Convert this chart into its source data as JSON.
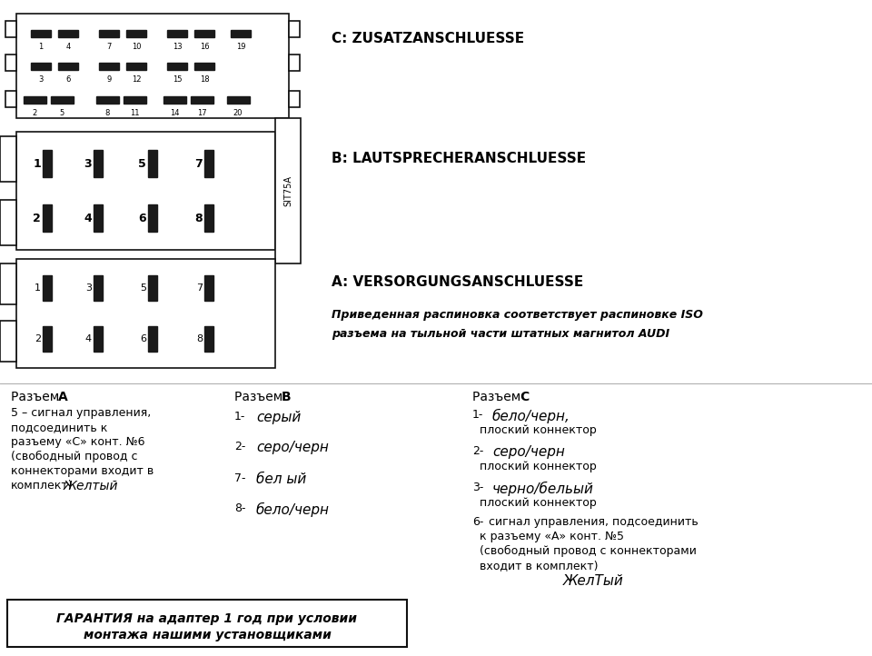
{
  "connector_C_label": "C: ZUSATZANSCHLUESSE",
  "connector_B_label": "B: LAUTSPRECHERANSCHLUESSE",
  "connector_A_label": "A: VERSORGUNGSANSCHLUESSE",
  "italic_note_line1": "Приведенная распиновка соответствует распиновке ISO",
  "italic_note_line2": "разъема на тыльной части штатных магнитол AUDI",
  "razem_A_title_plain": "Разъем ",
  "razem_A_title_bold": "А",
  "razem_A_text_line1": "5 – сигнал управления,",
  "razem_A_text_line2": "подсоединить к",
  "razem_A_text_line3": "разъему «С» конт. №6",
  "razem_A_text_line4": "(свободный провод с",
  "razem_A_text_line5": "коннекторами входит в",
  "razem_A_text_line6": "комплект)",
  "razem_A_handwritten": "Желтый",
  "razem_B_title_plain": "Разъем ",
  "razem_B_title_bold": "В",
  "razem_B_items": [
    {
      "num": "1-",
      "hw": "серый"
    },
    {
      "num": "2-",
      "hw": "серо/черн"
    },
    {
      "num": "7-",
      "hw": "бел ый"
    },
    {
      "num": "8-",
      "hw": "бело/черн"
    }
  ],
  "razem_C_title_plain": "Разъем ",
  "razem_C_title_bold": "С",
  "razem_C_items": [
    {
      "num": "1-",
      "hw": "бело/черн,",
      "plain": "плоский коннектор"
    },
    {
      "num": "2-",
      "hw": "серо/черн",
      "plain": " плоский коннектор"
    },
    {
      "num": "3-",
      "hw": "черно/бельый",
      "plain": "плоский коннектор"
    },
    {
      "num": "6-",
      "hw": "",
      "plain": "сигнал управления, подсоединить\nк разъему «А» конт. №5\n(свободный провод с коннекторами\nвходит в комплект)"
    },
    {
      "num": "",
      "hw": "ЖелТый",
      "plain": ""
    }
  ],
  "guarantee_text_line1": "ГАРАНТИЯ на адаптер 1 год при условии",
  "guarantee_text_line2": "монтажа нашими установщиками",
  "sit_label": "SIT75A",
  "C_row1_nums": [
    "1",
    "4",
    "7",
    "10",
    "13",
    "16",
    "19"
  ],
  "C_row2_nums": [
    "3",
    "6",
    "9",
    "12",
    "15",
    "18"
  ],
  "C_row3_nums": [
    "2",
    "5",
    "8",
    "11",
    "14",
    "17",
    "20"
  ],
  "B_row1_nums": [
    "1",
    "3",
    "5",
    "7"
  ],
  "B_row2_nums": [
    "2",
    "4",
    "6",
    "8"
  ],
  "A_row1_nums": [
    "1",
    "3",
    "5",
    "7"
  ],
  "A_row2_nums": [
    "2",
    "4",
    "6",
    "8"
  ]
}
